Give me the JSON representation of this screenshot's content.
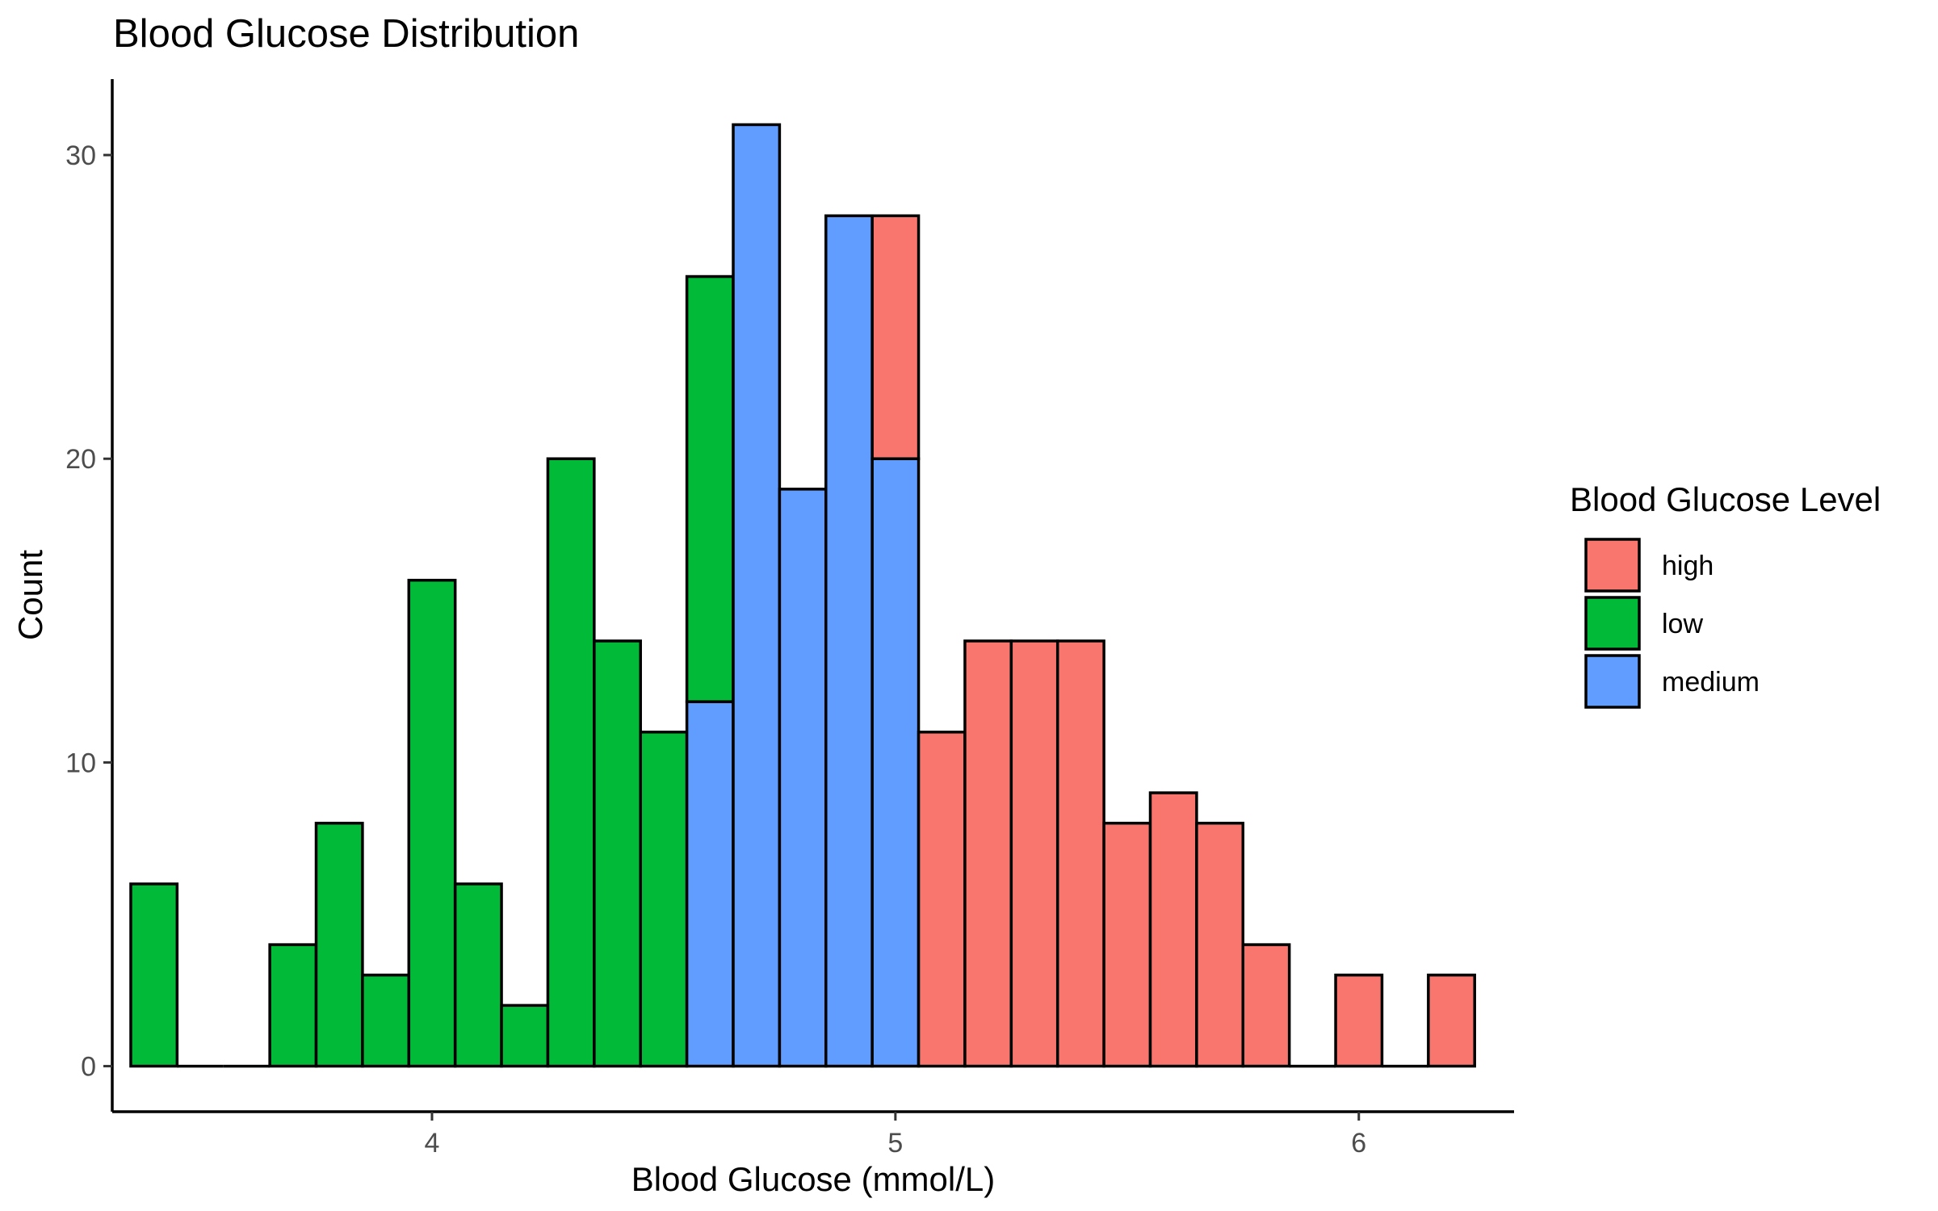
{
  "chart_data": {
    "type": "bar",
    "subtype": "stacked-histogram",
    "title": "Blood Glucose Distribution",
    "xlabel": "Blood Glucose (mmol/L)",
    "ylabel": "Count",
    "xlim": [
      3.31,
      6.335
    ],
    "ylim": [
      -1.5,
      32.5
    ],
    "xticks": [
      4,
      5,
      6
    ],
    "yticks": [
      0,
      10,
      20,
      30
    ],
    "grid": false,
    "legend": {
      "title": "Blood Glucose Level",
      "position": "right"
    },
    "bin_width": 0.1,
    "bins_left": [
      3.35,
      3.45,
      3.55,
      3.65,
      3.75,
      3.85,
      3.95,
      4.05,
      4.15,
      4.25,
      4.35,
      4.45,
      4.55,
      4.65,
      4.75,
      4.85,
      4.95,
      5.05,
      5.15,
      5.25,
      5.35,
      5.45,
      5.55,
      5.65,
      5.75,
      5.85,
      5.95,
      6.05,
      6.15
    ],
    "series": [
      {
        "name": "high",
        "color": "#F8766D",
        "values": [
          0,
          0,
          0,
          0,
          0,
          0,
          0,
          0,
          0,
          0,
          0,
          0,
          0,
          0,
          0,
          0,
          8,
          11,
          14,
          14,
          14,
          8,
          9,
          8,
          4,
          0,
          3,
          0,
          3
        ]
      },
      {
        "name": "low",
        "color": "#00BA38",
        "values": [
          6,
          0,
          0,
          4,
          8,
          3,
          16,
          6,
          2,
          20,
          14,
          11,
          14,
          0,
          0,
          0,
          0,
          0,
          0,
          0,
          0,
          0,
          0,
          0,
          0,
          0,
          0,
          0,
          0
        ]
      },
      {
        "name": "medium",
        "color": "#619CFF",
        "values": [
          0,
          0,
          0,
          0,
          0,
          0,
          0,
          0,
          0,
          0,
          0,
          0,
          12,
          31,
          19,
          28,
          20,
          0,
          0,
          0,
          0,
          0,
          0,
          0,
          0,
          0,
          0,
          0,
          0
        ]
      }
    ],
    "stack_order_bottom_to_top": [
      "medium",
      "low",
      "high"
    ]
  }
}
